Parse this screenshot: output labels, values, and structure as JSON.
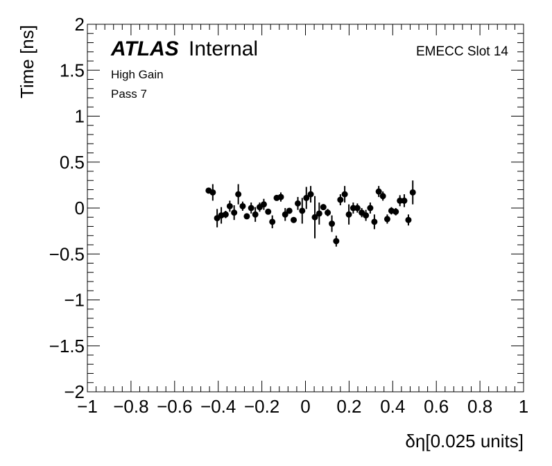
{
  "chart_data": {
    "type": "scatter",
    "xlabel": "δη[0.025 units]",
    "ylabel": "Time [ns]",
    "xlim": [
      -1,
      1
    ],
    "ylim": [
      -2,
      2
    ],
    "x_ticks": [
      "−1",
      "−0.8",
      "−0.6",
      "−0.4",
      "−0.2",
      "0",
      "0.2",
      "0.4",
      "0.6",
      "0.8",
      "1"
    ],
    "x_tick_values": [
      -1,
      -0.8,
      -0.6,
      -0.4,
      -0.2,
      0,
      0.2,
      0.4,
      0.6,
      0.8,
      1
    ],
    "y_ticks": [
      "−2",
      "−1.5",
      "−1",
      "−0.5",
      "0",
      "0.5",
      "1",
      "1.5",
      "2"
    ],
    "y_tick_values": [
      -2,
      -1.5,
      -1,
      -0.5,
      0,
      0.5,
      1,
      1.5,
      2
    ],
    "grid": false,
    "points": [
      {
        "x": -0.444,
        "y": 0.19,
        "err": 0.02
      },
      {
        "x": -0.425,
        "y": 0.17,
        "err": 0.09
      },
      {
        "x": -0.405,
        "y": -0.11,
        "err": 0.1
      },
      {
        "x": -0.386,
        "y": -0.08,
        "err": 0.09
      },
      {
        "x": -0.366,
        "y": -0.07,
        "err": 0.04
      },
      {
        "x": -0.347,
        "y": 0.02,
        "err": 0.06
      },
      {
        "x": -0.327,
        "y": -0.05,
        "err": 0.08
      },
      {
        "x": -0.308,
        "y": 0.15,
        "err": 0.11
      },
      {
        "x": -0.288,
        "y": 0.02,
        "err": 0.05
      },
      {
        "x": -0.269,
        "y": -0.09,
        "err": 0.03
      },
      {
        "x": -0.249,
        "y": 0.0,
        "err": 0.06
      },
      {
        "x": -0.23,
        "y": -0.07,
        "err": 0.08
      },
      {
        "x": -0.21,
        "y": 0.01,
        "err": 0.05
      },
      {
        "x": -0.191,
        "y": 0.04,
        "err": 0.06
      },
      {
        "x": -0.171,
        "y": -0.04,
        "err": 0.02
      },
      {
        "x": -0.152,
        "y": -0.15,
        "err": 0.07
      },
      {
        "x": -0.132,
        "y": 0.11,
        "err": 0.02
      },
      {
        "x": -0.113,
        "y": 0.12,
        "err": 0.05
      },
      {
        "x": -0.093,
        "y": -0.07,
        "err": 0.07
      },
      {
        "x": -0.074,
        "y": -0.03,
        "err": 0.03
      },
      {
        "x": -0.054,
        "y": -0.13,
        "err": 0.02
      },
      {
        "x": -0.035,
        "y": 0.05,
        "err": 0.07
      },
      {
        "x": -0.015,
        "y": -0.03,
        "err": 0.14
      },
      {
        "x": 0.004,
        "y": 0.11,
        "err": 0.12
      },
      {
        "x": 0.024,
        "y": 0.15,
        "err": 0.09
      },
      {
        "x": 0.043,
        "y": -0.1,
        "err": 0.23
      },
      {
        "x": 0.063,
        "y": -0.06,
        "err": 0.12
      },
      {
        "x": 0.082,
        "y": 0.01,
        "err": 0.03
      },
      {
        "x": 0.102,
        "y": -0.05,
        "err": 0.04
      },
      {
        "x": 0.121,
        "y": -0.17,
        "err": 0.09
      },
      {
        "x": 0.141,
        "y": -0.36,
        "err": 0.06
      },
      {
        "x": 0.16,
        "y": 0.09,
        "err": 0.06
      },
      {
        "x": 0.18,
        "y": 0.15,
        "err": 0.09
      },
      {
        "x": 0.199,
        "y": -0.07,
        "err": 0.11
      },
      {
        "x": 0.219,
        "y": 0.0,
        "err": 0.06
      },
      {
        "x": 0.238,
        "y": 0.0,
        "err": 0.05
      },
      {
        "x": 0.258,
        "y": -0.05,
        "err": 0.05
      },
      {
        "x": 0.277,
        "y": -0.08,
        "err": 0.06
      },
      {
        "x": 0.297,
        "y": 0.0,
        "err": 0.06
      },
      {
        "x": 0.316,
        "y": -0.15,
        "err": 0.08
      },
      {
        "x": 0.336,
        "y": 0.18,
        "err": 0.06
      },
      {
        "x": 0.355,
        "y": 0.13,
        "err": 0.05
      },
      {
        "x": 0.375,
        "y": -0.12,
        "err": 0.05
      },
      {
        "x": 0.394,
        "y": -0.03,
        "err": 0.04
      },
      {
        "x": 0.414,
        "y": -0.04,
        "err": 0.04
      },
      {
        "x": 0.433,
        "y": 0.08,
        "err": 0.06
      },
      {
        "x": 0.453,
        "y": 0.08,
        "err": 0.07
      },
      {
        "x": 0.472,
        "y": -0.13,
        "err": 0.06
      },
      {
        "x": 0.492,
        "y": 0.17,
        "err": 0.13
      }
    ],
    "annotations": {
      "atlas": "ATLAS",
      "internal": "Internal",
      "gain": "High Gain",
      "pass": "Pass 7",
      "slot": "EMECC Slot 14"
    },
    "marker_color": "#000000",
    "axis_color": "#000000"
  }
}
